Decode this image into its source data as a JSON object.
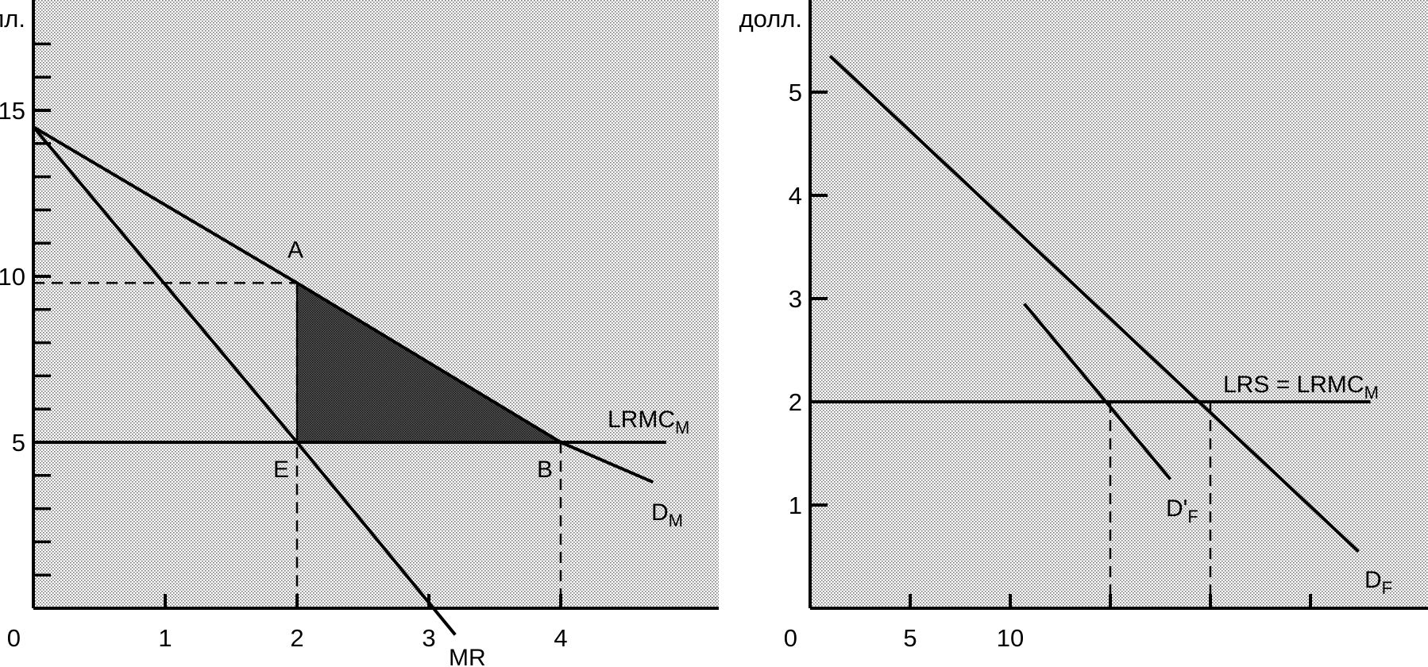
{
  "chart_data": [
    {
      "type": "line",
      "panel": "left",
      "ylabel": "лл.",
      "x_ticks": [
        {
          "value": 1,
          "label": "1"
        },
        {
          "value": 2,
          "label": "2"
        },
        {
          "value": 3,
          "label": "3"
        },
        {
          "value": 4,
          "label": "4"
        }
      ],
      "y_ticks": [
        {
          "value": 5,
          "label": "5"
        },
        {
          "value": 10,
          "label": "10"
        },
        {
          "value": 15,
          "label": "15"
        }
      ],
      "origin_label": "0",
      "xlim": [
        0,
        5.2
      ],
      "ylim": [
        0,
        18
      ],
      "grid": false,
      "background": "stippled",
      "series": [
        {
          "name": "D",
          "subscript": "M",
          "points": [
            [
              0,
              14.5
            ],
            [
              2,
              9.8
            ],
            [
              4,
              5
            ],
            [
              4.7,
              3.8
            ]
          ]
        },
        {
          "name": "MR",
          "subscript": "",
          "points": [
            [
              0,
              14.5
            ],
            [
              2,
              5
            ],
            [
              3.2,
              -0.8
            ]
          ]
        },
        {
          "name": "LRMC",
          "subscript": "M",
          "points": [
            [
              0,
              5
            ],
            [
              4.8,
              5
            ]
          ]
        }
      ],
      "points": [
        {
          "label": "A",
          "x": 2,
          "y": 9.8
        },
        {
          "label": "E",
          "x": 2,
          "y": 5
        },
        {
          "label": "B",
          "x": 4,
          "y": 5
        }
      ],
      "shaded_region": {
        "vertices": [
          [
            2,
            9.8
          ],
          [
            4,
            5
          ],
          [
            2,
            5
          ]
        ]
      },
      "dashed_guides": [
        {
          "from": [
            0,
            9.8
          ],
          "to": [
            2,
            9.8
          ]
        },
        {
          "from": [
            2,
            9.8
          ],
          "to": [
            2,
            0
          ]
        },
        {
          "from": [
            4,
            5
          ],
          "to": [
            4,
            0
          ]
        }
      ]
    },
    {
      "type": "line",
      "panel": "right",
      "ylabel": "долл.",
      "x_ticks": [
        {
          "value": 5,
          "label": "5"
        },
        {
          "value": 10,
          "label": "10"
        },
        {
          "value": 15,
          "label": ""
        },
        {
          "value": 20,
          "label": ""
        },
        {
          "value": 25,
          "label": ""
        }
      ],
      "y_ticks": [
        {
          "value": 1,
          "label": "1"
        },
        {
          "value": 2,
          "label": "2"
        },
        {
          "value": 3,
          "label": "3"
        },
        {
          "value": 4,
          "label": "4"
        },
        {
          "value": 5,
          "label": "5"
        }
      ],
      "origin_label": "0",
      "xlim": [
        0,
        30
      ],
      "ylim": [
        0,
        5.8
      ],
      "grid": false,
      "background": "stippled",
      "series": [
        {
          "name": "D",
          "subscript": "F",
          "points": [
            [
              1,
              5.35
            ],
            [
              27.4,
              0.55
            ]
          ]
        },
        {
          "name": "D'",
          "subscript": "F",
          "points": [
            [
              10.7,
              2.95
            ],
            [
              18,
              1.25
            ]
          ]
        },
        {
          "name": "LRS = LRMC",
          "subscript": "M",
          "points": [
            [
              0,
              2
            ],
            [
              28,
              2
            ]
          ]
        }
      ],
      "dashed_guides": [
        {
          "from": [
            15,
            2
          ],
          "to": [
            15,
            0
          ]
        },
        {
          "from": [
            20,
            2
          ],
          "to": [
            20,
            0
          ]
        }
      ]
    }
  ]
}
